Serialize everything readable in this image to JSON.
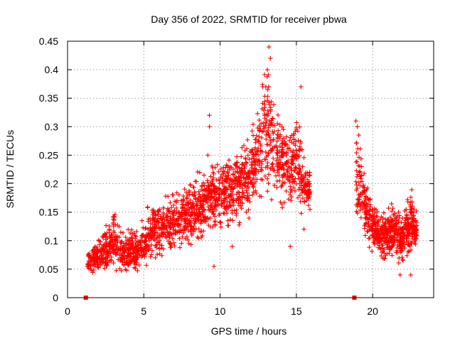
{
  "chart_data": {
    "type": "scatter",
    "title": "Day 356 of 2022, SRMTID for receiver pbwa",
    "xlabel": "GPS time / hours",
    "ylabel": "SRMTID / TECUs",
    "xlim": [
      0,
      24
    ],
    "ylim": [
      0,
      0.45
    ],
    "grid": true,
    "marker": "plus",
    "x_ticks": [
      0,
      5,
      10,
      15,
      20
    ],
    "x_tick_labels": [
      "0",
      "5",
      "10",
      "15",
      "20"
    ],
    "y_ticks": [
      0,
      0.05,
      0.1,
      0.15,
      0.2,
      0.25,
      0.3,
      0.35,
      0.4,
      0.45
    ],
    "y_tick_labels": [
      "0",
      "0.05",
      "0.1",
      "0.15",
      "0.2",
      "0.25",
      "0.3",
      "0.35",
      "0.4",
      "0.45"
    ],
    "series": [
      {
        "name": "SRMTID",
        "color": "#ff0000",
        "zero_points": [
          1.2,
          18.8
        ],
        "envelope": {
          "x": [
            1.3,
            1.5,
            2.0,
            2.5,
            3.0,
            3.5,
            4.0,
            4.5,
            5.0,
            5.5,
            6.0,
            6.5,
            7.0,
            7.5,
            8.0,
            8.5,
            9.0,
            9.5,
            10.0,
            10.5,
            11.0,
            11.5,
            12.0,
            12.5,
            13.0,
            13.5,
            14.0,
            14.5,
            15.0,
            15.5,
            15.9
          ],
          "low": [
            0.03,
            0.04,
            0.04,
            0.04,
            0.05,
            0.04,
            0.04,
            0.04,
            0.05,
            0.05,
            0.06,
            0.07,
            0.08,
            0.09,
            0.09,
            0.1,
            0.09,
            0.1,
            0.11,
            0.11,
            0.12,
            0.13,
            0.14,
            0.15,
            0.16,
            0.16,
            0.15,
            0.15,
            0.15,
            0.14,
            0.14
          ],
          "high": [
            0.09,
            0.09,
            0.1,
            0.13,
            0.16,
            0.12,
            0.12,
            0.12,
            0.14,
            0.18,
            0.17,
            0.18,
            0.19,
            0.2,
            0.21,
            0.22,
            0.24,
            0.25,
            0.26,
            0.25,
            0.26,
            0.27,
            0.3,
            0.34,
            0.43,
            0.38,
            0.33,
            0.3,
            0.35,
            0.25,
            0.22
          ]
        },
        "envelope2": {
          "x": [
            18.9,
            19.2,
            19.5,
            20.0,
            20.5,
            21.0,
            21.5,
            22.0,
            22.5,
            22.9
          ],
          "low": [
            0.14,
            0.11,
            0.09,
            0.08,
            0.07,
            0.06,
            0.06,
            0.06,
            0.07,
            0.08
          ],
          "high": [
            0.31,
            0.28,
            0.22,
            0.17,
            0.15,
            0.16,
            0.17,
            0.15,
            0.2,
            0.15
          ]
        },
        "outliers": [
          [
            9.3,
            0.32
          ],
          [
            9.3,
            0.3
          ],
          [
            13.2,
            0.44
          ],
          [
            13.3,
            0.42
          ],
          [
            13.1,
            0.4
          ],
          [
            15.3,
            0.37
          ],
          [
            13.0,
            0.37
          ],
          [
            9.6,
            0.055
          ],
          [
            10.8,
            0.09
          ],
          [
            14.6,
            0.09
          ],
          [
            19.0,
            0.3
          ],
          [
            18.9,
            0.31
          ],
          [
            21.8,
            0.04
          ],
          [
            22.5,
            0.04
          ],
          [
            9.2,
            0.25
          ],
          [
            15.5,
            0.12
          ]
        ]
      }
    ]
  }
}
